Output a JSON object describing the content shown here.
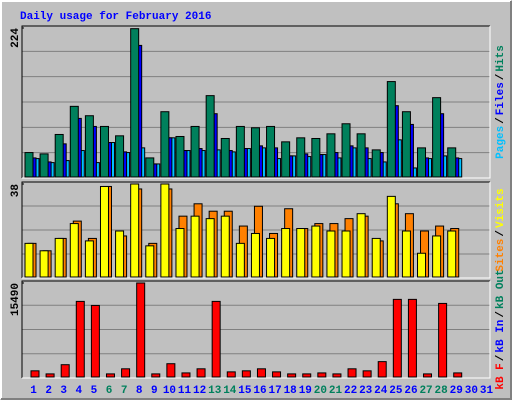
{
  "title": "Daily usage for February 2016",
  "chart_data": [
    {
      "type": "bar",
      "ylim": [
        0,
        224
      ],
      "yticks": [
        224
      ],
      "separator": "/",
      "series": [
        {
          "name": "Pages",
          "color": "#00c0ff",
          "values": [
            29,
            23,
            26,
            41,
            23,
            53,
            38,
            45,
            21,
            60,
            41,
            41,
            42,
            39,
            44,
            45,
            29,
            33,
            32,
            35,
            30,
            45,
            29,
            24,
            57,
            15,
            29,
            33,
            29,
            null,
            null
          ]
        },
        {
          "name": "Files",
          "color": "#0000ff",
          "values": [
            30,
            24,
            51,
            89,
            77,
            53,
            39,
            198,
            21,
            60,
            41,
            44,
            96,
            41,
            44,
            48,
            45,
            33,
            36,
            35,
            38,
            48,
            45,
            38,
            108,
            80,
            30,
            96,
            30,
            null,
            null
          ]
        },
        {
          "name": "Hits",
          "color": "#00805c",
          "values": [
            38,
            36,
            65,
            107,
            93,
            77,
            63,
            223,
            30,
            99,
            62,
            77,
            123,
            59,
            77,
            75,
            77,
            54,
            60,
            59,
            66,
            81,
            66,
            42,
            144,
            99,
            45,
            120,
            45,
            null,
            null
          ]
        }
      ]
    },
    {
      "type": "bar",
      "ylim": [
        0,
        38
      ],
      "yticks": [
        38
      ],
      "separator": "/",
      "series": [
        {
          "name": "Sites",
          "color": "#ff8000",
          "values": [
            14,
            11,
            16,
            23,
            16,
            37,
            17,
            36,
            14,
            36,
            25,
            30,
            27,
            27,
            21,
            29,
            18,
            28,
            20,
            22,
            22,
            24,
            25,
            15,
            30,
            26,
            19,
            21,
            20,
            null,
            null
          ]
        },
        {
          "name": "Visits",
          "color": "#ffff00",
          "values": [
            14,
            11,
            16,
            22,
            15,
            37,
            19,
            38,
            13,
            38,
            20,
            25,
            24,
            25,
            14,
            18,
            16,
            20,
            20,
            21,
            19,
            19,
            26,
            16,
            33,
            19,
            10,
            17,
            19,
            null,
            null
          ]
        }
      ]
    },
    {
      "type": "bar",
      "ylim": [
        0,
        15490
      ],
      "yticks": [
        15490
      ],
      "separator": "/",
      "categories": [
        1,
        2,
        3,
        4,
        5,
        6,
        7,
        8,
        9,
        10,
        11,
        12,
        13,
        14,
        15,
        16,
        17,
        18,
        19,
        20,
        21,
        22,
        23,
        24,
        25,
        26,
        27,
        28,
        29,
        30,
        31
      ],
      "category_colors": [
        "#0000ff",
        "#0000ff",
        "#0000ff",
        "#0000ff",
        "#0000ff",
        "#00805c",
        "#00805c",
        "#0000ff",
        "#0000ff",
        "#0000ff",
        "#0000ff",
        "#0000ff",
        "#00805c",
        "#00805c",
        "#0000ff",
        "#0000ff",
        "#0000ff",
        "#0000ff",
        "#0000ff",
        "#00805c",
        "#00805c",
        "#0000ff",
        "#0000ff",
        "#0000ff",
        "#0000ff",
        "#0000ff",
        "#00805c",
        "#00805c",
        "#0000ff",
        "#0000ff",
        "#0000ff"
      ],
      "series": [
        {
          "name": "kB F",
          "color": "#ff0000",
          "values": [
            1170,
            670,
            2170,
            12490,
            11830,
            670,
            1500,
            15490,
            670,
            2330,
            830,
            1500,
            12490,
            1000,
            1170,
            1500,
            1000,
            670,
            670,
            830,
            670,
            1500,
            1170,
            2670,
            12820,
            12820,
            670,
            12160,
            830,
            null,
            null
          ]
        },
        {
          "name": "kB In",
          "color": "#0000ff",
          "values": [
            null,
            null,
            null,
            null,
            null,
            null,
            null,
            null,
            null,
            null,
            null,
            null,
            null,
            null,
            null,
            null,
            null,
            null,
            null,
            null,
            null,
            null,
            null,
            null,
            null,
            null,
            null,
            null,
            null,
            null,
            null
          ]
        },
        {
          "name": "kB Out",
          "color": "#00805c",
          "values": [
            null,
            null,
            null,
            null,
            null,
            null,
            null,
            null,
            null,
            null,
            null,
            null,
            null,
            null,
            null,
            null,
            null,
            null,
            null,
            null,
            null,
            null,
            null,
            null,
            null,
            null,
            null,
            null,
            null,
            null,
            null
          ]
        }
      ]
    }
  ]
}
